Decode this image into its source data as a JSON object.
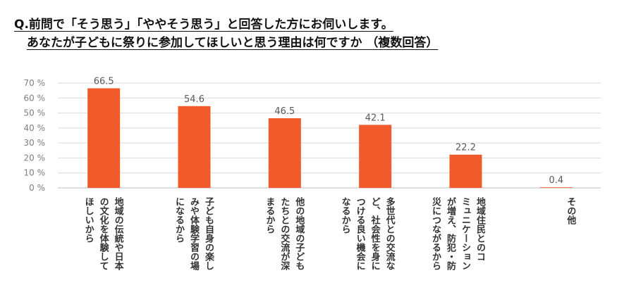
{
  "title_line1": "Q.前問で「そう思う」「ややそう思う」と回答した方にお伺いします。",
  "title_line2": "あなたが子どもに祭りに参加してほしいと思う理由は何ですか （複数回答）",
  "chart_data": {
    "type": "bar",
    "title": "あなたが子どもに祭りに参加してほしいと思う理由は何ですか （複数回答）",
    "xlabel": "",
    "ylabel": "",
    "ylim": [
      0,
      70
    ],
    "yticks": [
      0,
      10,
      20,
      30,
      40,
      50,
      60,
      70
    ],
    "ytick_suffix": " %",
    "grid": true,
    "bar_color": "#f15a2b",
    "categories": [
      "地域の伝統や日本の文化を体験してほしいから",
      "子ども自身の楽しみや体験学習の場になるから",
      "他の地域の子どもたちとの交流が深まるから",
      "多世代との交流など、社会性を身につける良い機会になるから",
      "地域住民とのコミュニケーションが増え、防犯・防災につながるから",
      "その他"
    ],
    "category_lines": [
      [
        "地域の伝統や日本",
        "の文化を体験して",
        "ほしいから"
      ],
      [
        "子ども自身の楽し",
        "みや体験学習の場",
        "になるから"
      ],
      [
        "他の地域の子ども",
        "たちとの交流が深",
        "まるから"
      ],
      [
        "多世代との交流な",
        "ど、社会性を身に",
        "つける良い機会に",
        "なるから"
      ],
      [
        "地域住民とのコ",
        "ミュニケーション",
        "が増え、防犯・防",
        "災につながるから"
      ],
      [
        "その他"
      ]
    ],
    "values": [
      66.5,
      54.6,
      46.5,
      42.1,
      22.2,
      0.4
    ],
    "value_labels": [
      "66.5",
      "54.6",
      "46.5",
      "42.1",
      "22.2",
      "0.4"
    ]
  }
}
